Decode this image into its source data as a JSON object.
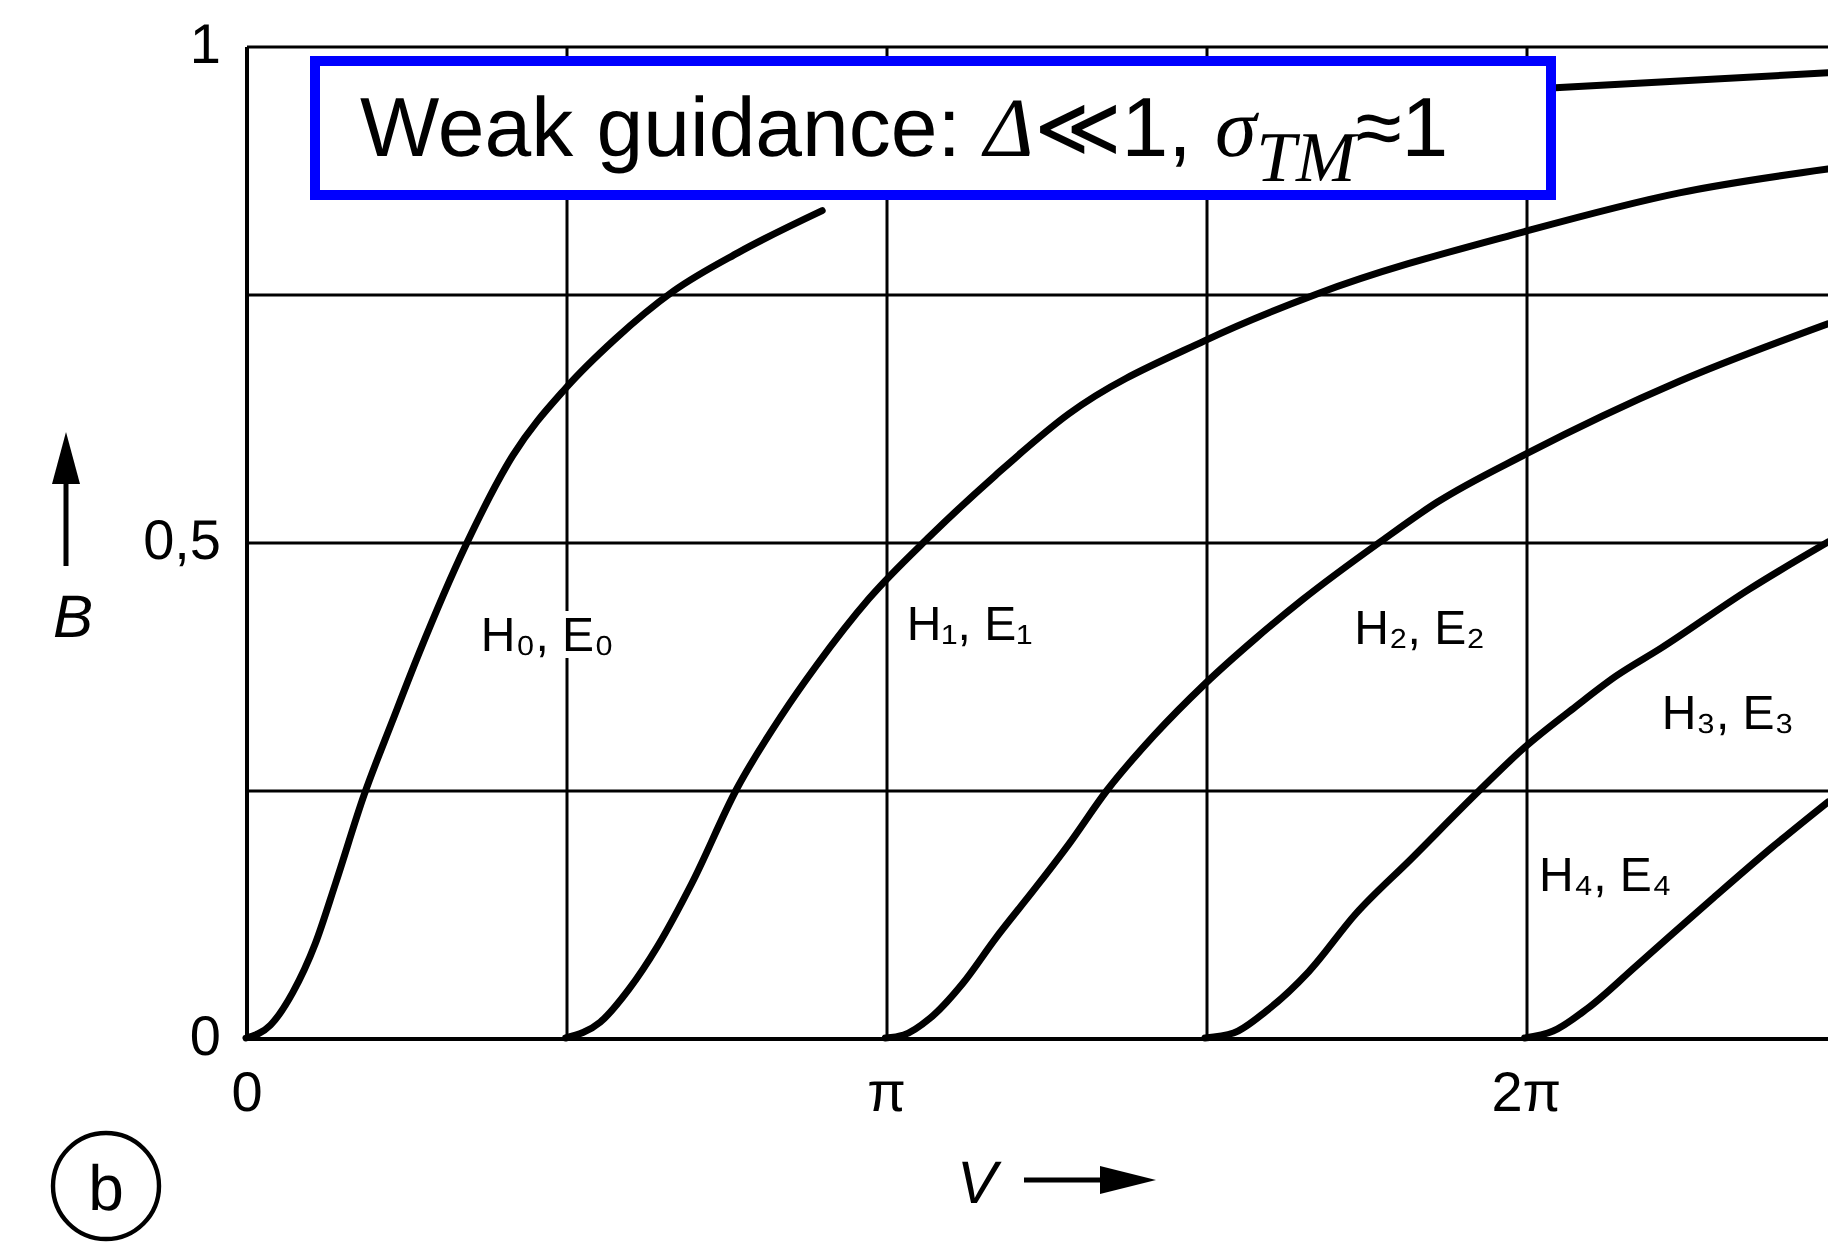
{
  "chart_data": {
    "type": "line",
    "xlabel": "V",
    "ylabel": "B",
    "annotations": [
      "Weak guidance: Δ≪1, σ$_{TM}$≈1",
      "b"
    ],
    "xlim": [
      0,
      7.77
    ],
    "ylim": [
      0,
      1
    ],
    "xticks": [
      0,
      {
        "value": 1.5708,
        "label": null
      },
      {
        "value": 3.1416,
        "label": "π"
      },
      {
        "value": 4.7124,
        "label": null
      },
      {
        "value": 6.2832,
        "label": "2π"
      }
    ],
    "yticks": [
      0,
      {
        "value": 0.25,
        "label": null
      },
      {
        "value": 0.5,
        "label": "0,5"
      },
      {
        "value": 0.75,
        "label": null
      },
      1
    ],
    "grid": true,
    "series": [
      {
        "name": "H₀, E₀",
        "color": "#000000",
        "x": [
          0,
          0.12,
          0.23,
          0.34,
          0.44,
          0.58,
          0.72,
          0.85,
          1.08,
          1.31,
          1.57,
          1.81,
          2.1,
          2.42,
          2.83,
          4.6,
          6.43,
          7.77
        ],
        "values": [
          0,
          0.013,
          0.046,
          0.095,
          0.156,
          0.245,
          0.32,
          0.388,
          0.497,
          0.587,
          0.655,
          0.704,
          0.753,
          0.792,
          0.834,
          null,
          0.958,
          0.973
        ]
      },
      {
        "name": "H₁, E₁",
        "color": "#000000",
        "x": [
          1.57,
          1.74,
          1.88,
          2.02,
          2.19,
          2.41,
          2.63,
          2.8,
          3.06,
          3.36,
          3.68,
          4.04,
          4.71,
          5.26,
          6.28,
          7.04,
          7.77
        ],
        "values": [
          0,
          0.016,
          0.049,
          0.092,
          0.156,
          0.251,
          0.325,
          0.375,
          0.443,
          0.506,
          0.567,
          0.629,
          0.703,
          0.75,
          0.813,
          0.852,
          0.876
        ]
      },
      {
        "name": "H₂, E₂",
        "color": "#000000",
        "x": [
          3.14,
          3.23,
          3.36,
          3.52,
          3.68,
          3.88,
          4.04,
          4.23,
          4.46,
          4.71,
          4.96,
          5.19,
          5.57,
          5.85,
          6.28,
          7.04,
          7.77
        ],
        "values": [
          0,
          0.003,
          0.02,
          0.055,
          0.1,
          0.152,
          0.195,
          0.25,
          0.305,
          0.357,
          0.403,
          0.442,
          0.5,
          0.54,
          0.588,
          0.662,
          0.72
        ]
      },
      {
        "name": "H₃, E₃",
        "color": "#000000",
        "x": [
          4.71,
          4.85,
          5.01,
          5.22,
          5.45,
          5.72,
          6.06,
          6.28,
          6.53,
          6.73,
          6.95,
          7.38,
          7.77
        ],
        "values": [
          0,
          0.005,
          0.027,
          0.067,
          0.125,
          0.18,
          0.25,
          0.293,
          0.334,
          0.365,
          0.393,
          0.452,
          0.5
        ]
      },
      {
        "name": "H₄, E₄",
        "color": "#000000",
        "x": [
          6.28,
          6.42,
          6.59,
          6.83,
          7.2,
          7.5,
          7.77
        ],
        "values": [
          0,
          0.007,
          0.03,
          0.073,
          0.14,
          0.193,
          0.238
        ]
      }
    ]
  }
}
